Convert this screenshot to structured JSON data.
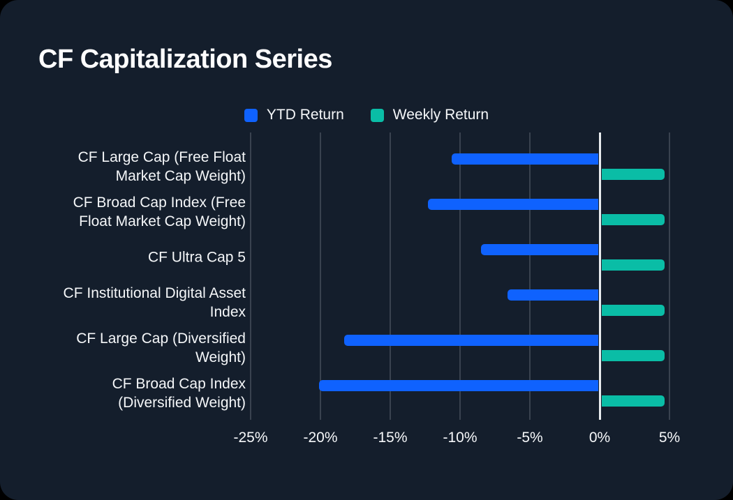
{
  "title": "CF Capitalization Series",
  "colors": {
    "background": "#000000",
    "card": "#141e2c",
    "grid_line": "#39424f",
    "zero_line": "#e8ebee",
    "text": "#f5f7f9",
    "ytd_blue": "#0f62fe",
    "weekly_teal": "#0abda6"
  },
  "chart_data": {
    "type": "bar",
    "orientation": "horizontal",
    "title": "CF Capitalization Series",
    "categories": [
      "CF Large Cap (Free Float Market Cap Weight)",
      "CF Broad Cap Index (Free Float Market Cap Weight)",
      "CF Ultra Cap 5",
      "CF Institutional Digital Asset Index",
      "CF Large Cap (Diversified Weight)",
      "CF Broad Cap Index (Diversified Weight)"
    ],
    "series": [
      {
        "name": "YTD Return",
        "color": "#0f62fe",
        "values": [
          -10.6,
          -12.3,
          -8.5,
          -6.6,
          -18.3,
          -20.1
        ]
      },
      {
        "name": "Weekly Return",
        "color": "#0abda6",
        "values": [
          4.6,
          4.6,
          4.6,
          4.6,
          4.6,
          4.6
        ]
      }
    ],
    "x_ticks": [
      -25,
      -20,
      -15,
      -10,
      -5,
      0,
      5
    ],
    "x_tick_labels": [
      "-25%",
      "-20%",
      "-15%",
      "-10%",
      "-5%",
      "0%",
      "5%"
    ],
    "xlim": [
      -25,
      6.5
    ],
    "unit": "%",
    "grid": "vertical",
    "zero_line": true,
    "legend_position": "top-center"
  }
}
